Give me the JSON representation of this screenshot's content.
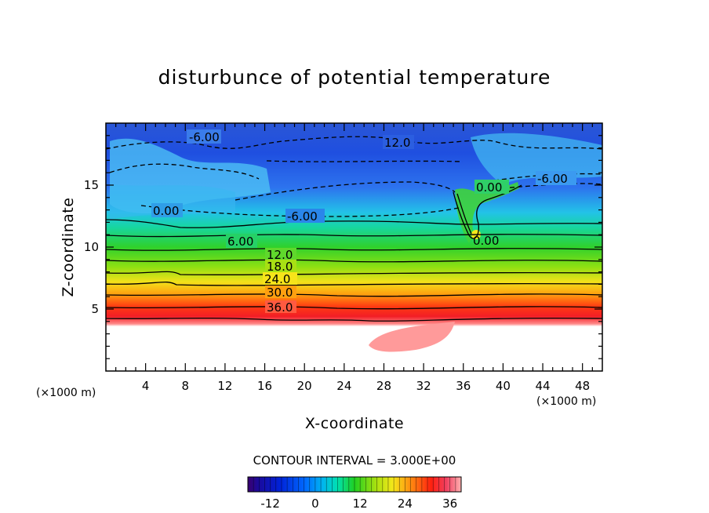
{
  "chart_data": {
    "type": "heatmap",
    "title": "disturbunce of potential temperature",
    "xlabel": "X-coordinate",
    "ylabel": "Z-coordinate",
    "x_unit": "(×1000 m)",
    "z_unit": "(×1000 m)",
    "xlim": [
      0,
      50
    ],
    "ylim": [
      0,
      20
    ],
    "x_ticks": [
      "4",
      "8",
      "12",
      "16",
      "20",
      "24",
      "28",
      "32",
      "36",
      "40",
      "44",
      "48"
    ],
    "y_ticks": [
      "5",
      "10",
      "15"
    ],
    "contour_interval_text": "CONTOUR INTERVAL = 3.000E+00",
    "contour_labels": [
      "-6.00",
      "12.0",
      "0.00",
      "6.00",
      "-6.00",
      "0.00",
      "-6.00",
      "6.00",
      "12.0",
      "18.0",
      "24.0",
      "30.0",
      "36.0",
      "0.00"
    ],
    "colorbar": {
      "range": [
        -18,
        39
      ],
      "tick_labels": [
        "-12",
        "0",
        "12",
        "24",
        "36"
      ]
    },
    "grid": false,
    "legend": "bottom-center"
  }
}
